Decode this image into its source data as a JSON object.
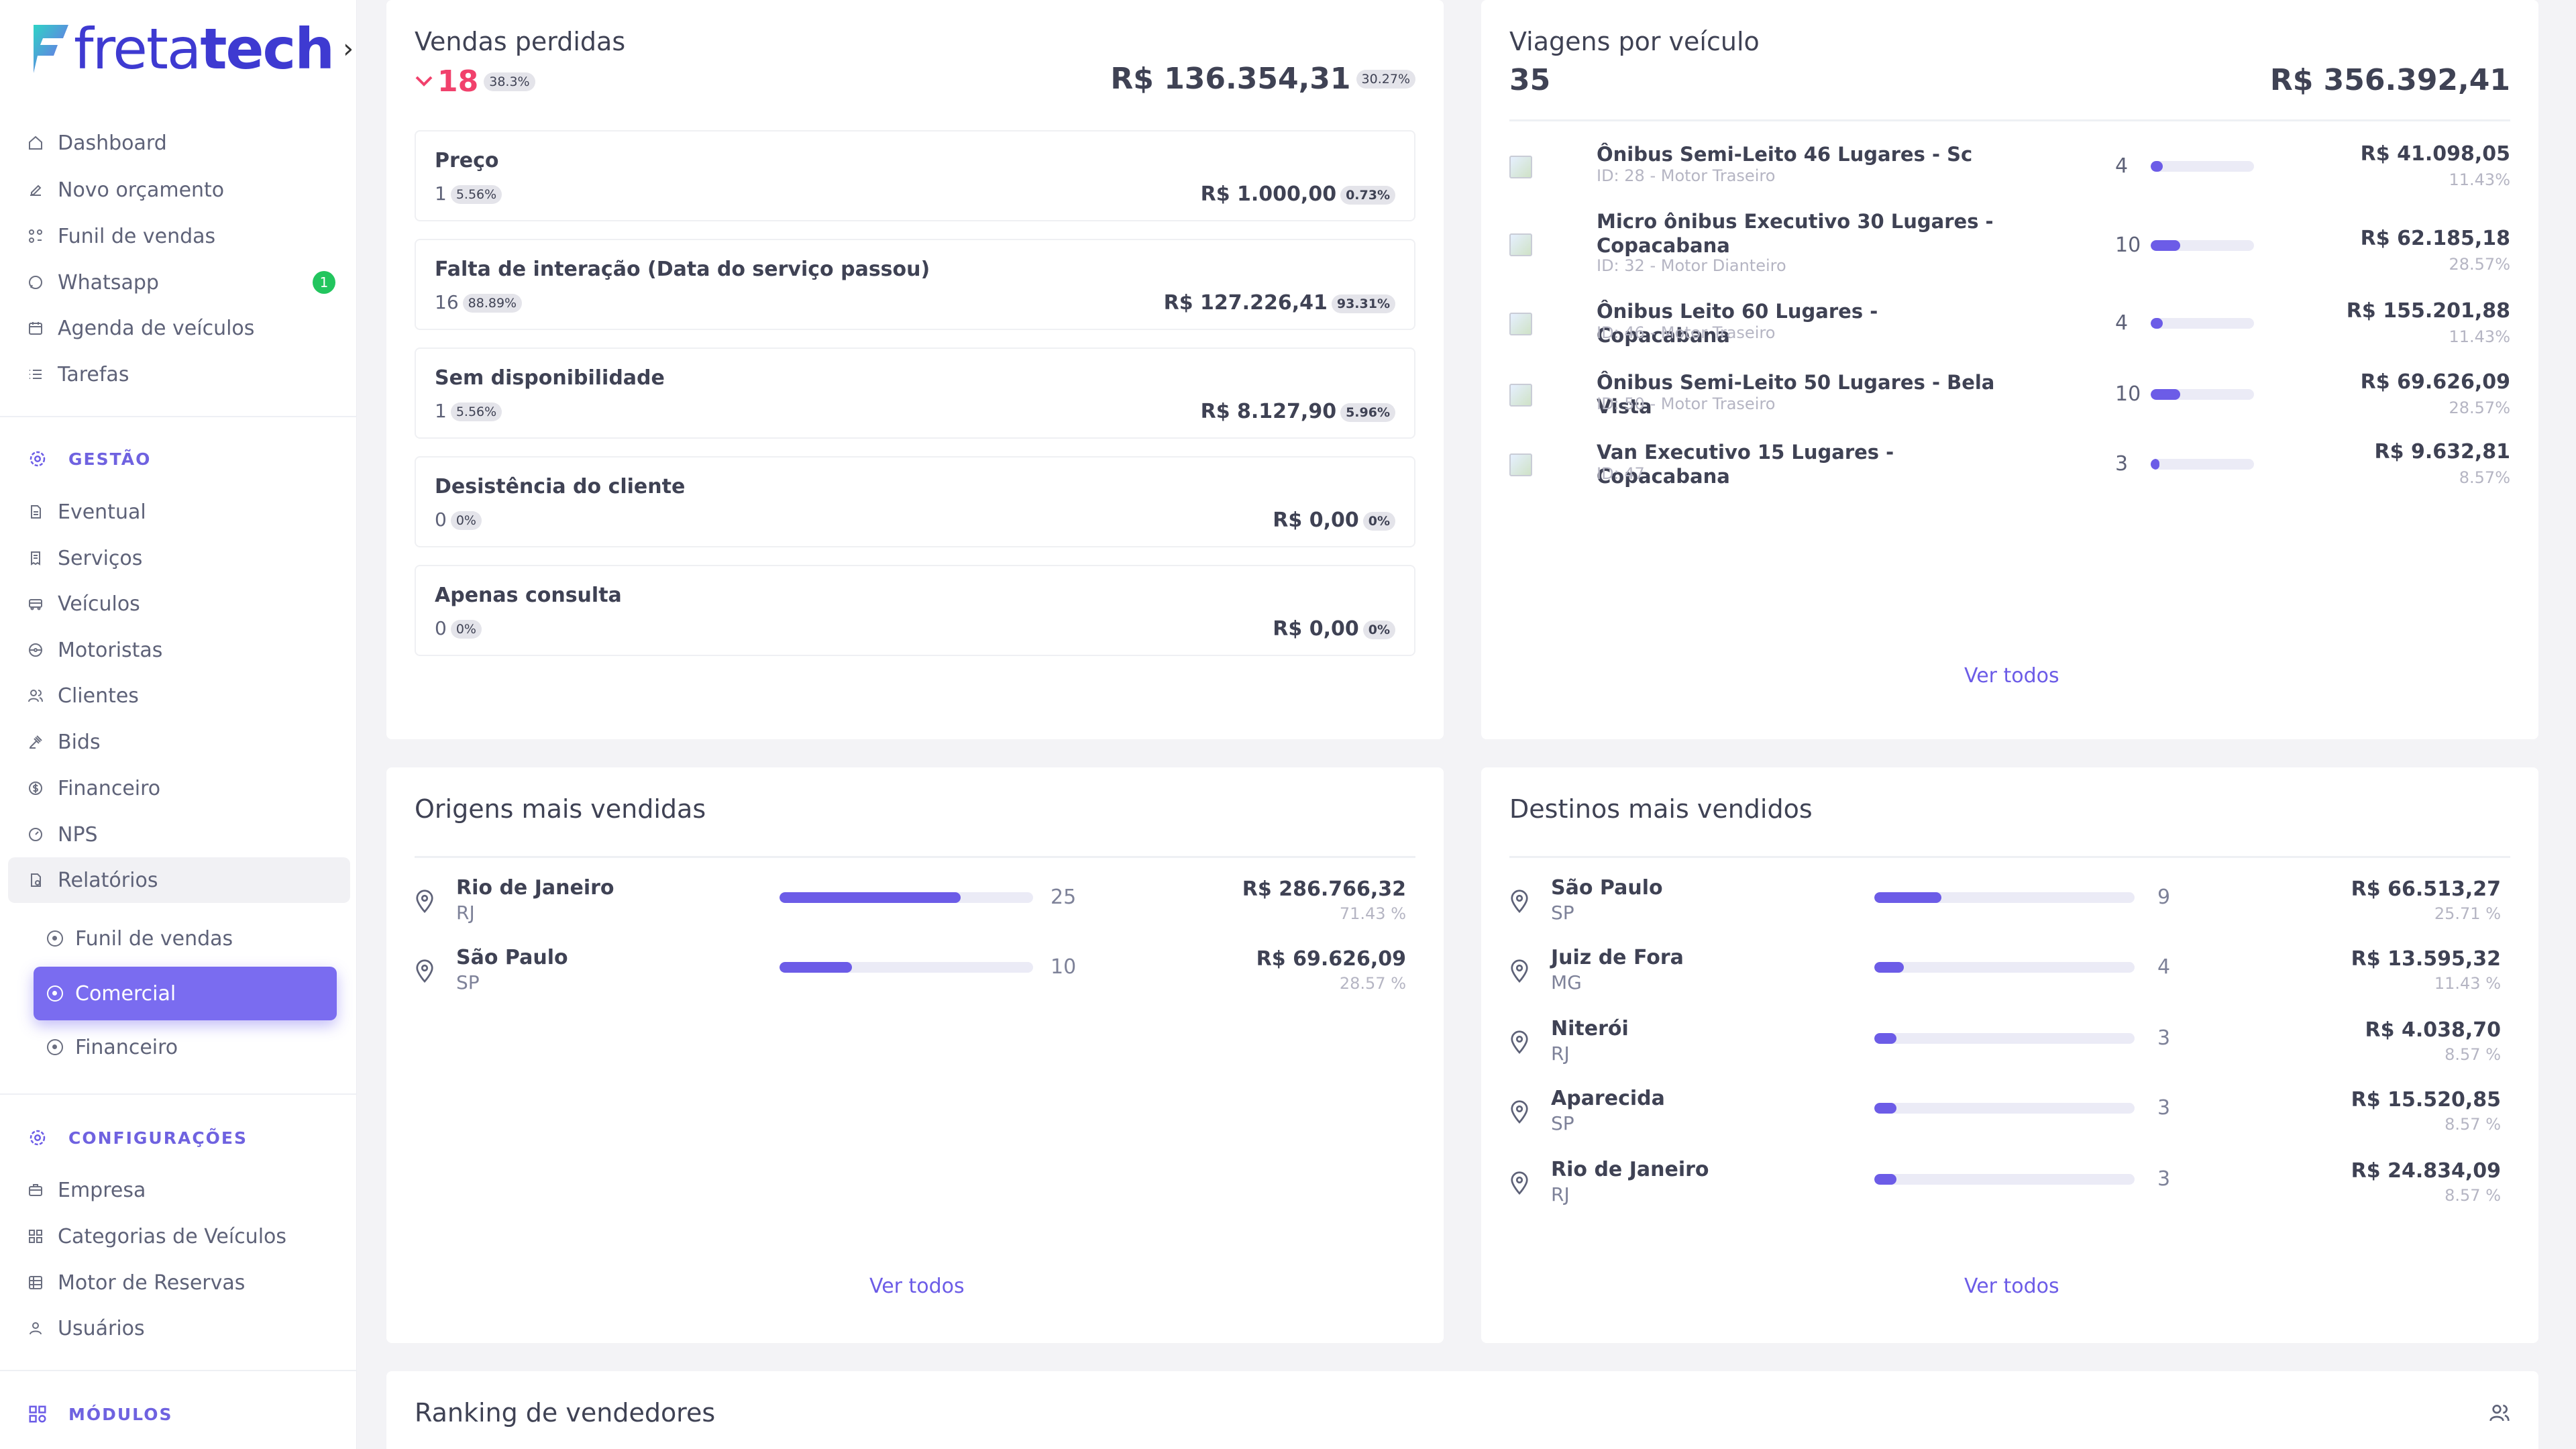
{
  "sidebar": {
    "logo_prefix": "freta",
    "logo_suffix": "tech",
    "top_items": [
      {
        "label": "Dashboard",
        "icon": "home-icon"
      },
      {
        "label": "Novo orçamento",
        "icon": "edit-icon"
      },
      {
        "label": "Funil de vendas",
        "icon": "funnel-icon"
      },
      {
        "label": "Whatsapp",
        "icon": "whatsapp-icon",
        "badge": "1"
      },
      {
        "label": "Agenda de veículos",
        "icon": "calendar-icon"
      },
      {
        "label": "Tarefas",
        "icon": "list-icon"
      }
    ],
    "gestao_label": "GESTÃO",
    "gestao_items": [
      {
        "label": "Eventual"
      },
      {
        "label": "Serviços"
      },
      {
        "label": "Veículos"
      },
      {
        "label": "Motoristas"
      },
      {
        "label": "Clientes"
      },
      {
        "label": "Bids"
      },
      {
        "label": "Financeiro"
      },
      {
        "label": "NPS"
      },
      {
        "label": "Relatórios"
      }
    ],
    "reports_sub": [
      {
        "label": "Funil de vendas"
      },
      {
        "label": "Comercial"
      },
      {
        "label": "Financeiro"
      }
    ],
    "config_label": "CONFIGURAÇÕES",
    "config_items": [
      {
        "label": "Empresa"
      },
      {
        "label": "Categorias de Veículos"
      },
      {
        "label": "Motor de Reservas"
      },
      {
        "label": "Usuários"
      }
    ],
    "modules_label": "MÓDULOS",
    "accent": "#6c5ce7",
    "badge_color": "#22c55e"
  },
  "lost_sales": {
    "title": "Vendas perdidas",
    "count": "18",
    "count_pct": "38.3%",
    "total": "R$ 136.354,31",
    "total_pct": "30.27%",
    "reasons": [
      {
        "title": "Preço",
        "count": "1",
        "count_pct": "5.56%",
        "value": "R$ 1.000,00",
        "value_pct": "0.73%"
      },
      {
        "title": "Falta de interação (Data do serviço passou)",
        "count": "16",
        "count_pct": "88.89%",
        "value": "R$ 127.226,41",
        "value_pct": "93.31%"
      },
      {
        "title": "Sem disponibilidade",
        "count": "1",
        "count_pct": "5.56%",
        "value": "R$ 8.127,90",
        "value_pct": "5.96%"
      },
      {
        "title": "Desistência do cliente",
        "count": "0",
        "count_pct": "0%",
        "value": "R$ 0,00",
        "value_pct": "0%"
      },
      {
        "title": "Apenas consulta",
        "count": "0",
        "count_pct": "0%",
        "value": "R$ 0,00",
        "value_pct": "0%"
      }
    ]
  },
  "trips": {
    "title": "Viagens por veículo",
    "count": "35",
    "total": "R$ 356.392,41",
    "vehicles": [
      {
        "name": "Ônibus Semi-Leito 46 Lugares - Sc",
        "sub": "ID: 28 - Motor Traseiro",
        "count": "4",
        "progress": 0.114,
        "value": "R$ 41.098,05",
        "pct": "11.43%"
      },
      {
        "name": "Micro ônibus Executivo 30 Lugares - Copacabana",
        "sub": "ID: 32 - Motor Dianteiro",
        "count": "10",
        "progress": 0.286,
        "value": "R$ 62.185,18",
        "pct": "28.57%"
      },
      {
        "name": "Ônibus Leito 60 Lugares - Copacabana",
        "sub": "ID: 46 - Motor Traseiro",
        "count": "4",
        "progress": 0.114,
        "value": "R$ 155.201,88",
        "pct": "11.43%"
      },
      {
        "name": "Ônibus Semi-Leito 50 Lugares - Bela Vista",
        "sub": "ID: 50 - Motor Traseiro",
        "count": "10",
        "progress": 0.286,
        "value": "R$ 69.626,09",
        "pct": "28.57%"
      },
      {
        "name": "Van Executivo 15 Lugares - Copacabana",
        "sub": "ID: 47",
        "count": "3",
        "progress": 0.086,
        "value": "R$ 9.632,81",
        "pct": "8.57%"
      }
    ],
    "see_all": "Ver todos"
  },
  "origins": {
    "title": "Origens mais vendidas",
    "items": [
      {
        "city": "Rio de Janeiro",
        "state": "RJ",
        "count": "25",
        "progress": 0.714,
        "value": "R$ 286.766,32",
        "pct": "71.43 %"
      },
      {
        "city": "São Paulo",
        "state": "SP",
        "count": "10",
        "progress": 0.286,
        "value": "R$ 69.626,09",
        "pct": "28.57 %"
      }
    ],
    "see_all": "Ver todos"
  },
  "destinations": {
    "title": "Destinos mais vendidos",
    "items": [
      {
        "city": "São Paulo",
        "state": "SP",
        "count": "9",
        "progress": 0.257,
        "value": "R$ 66.513,27",
        "pct": "25.71 %"
      },
      {
        "city": "Juiz de Fora",
        "state": "MG",
        "count": "4",
        "progress": 0.114,
        "value": "R$ 13.595,32",
        "pct": "11.43 %"
      },
      {
        "city": "Niterói",
        "state": "RJ",
        "count": "3",
        "progress": 0.086,
        "value": "R$ 4.038,70",
        "pct": "8.57 %"
      },
      {
        "city": "Aparecida",
        "state": "SP",
        "count": "3",
        "progress": 0.086,
        "value": "R$ 15.520,85",
        "pct": "8.57 %"
      },
      {
        "city": "Rio de Janeiro",
        "state": "RJ",
        "count": "3",
        "progress": 0.086,
        "value": "R$ 24.834,09",
        "pct": "8.57 %"
      }
    ],
    "see_all": "Ver todos"
  },
  "ranking": {
    "title": "Ranking de vendedores"
  }
}
